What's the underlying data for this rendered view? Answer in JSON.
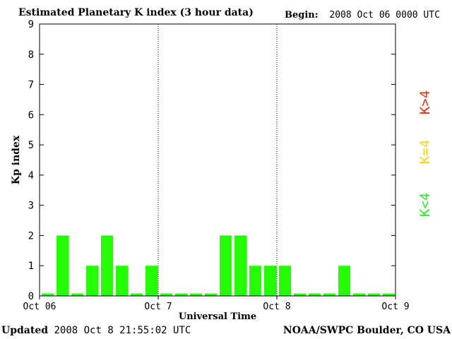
{
  "header": {
    "title": "Estimated Planetary K index (3 hour data)",
    "begin_label": "Begin:",
    "begin_value": "2008 Oct 06 0000 UTC"
  },
  "footer": {
    "updated_label": "Updated",
    "updated_value": "2008 Oct  8 21:55:02 UTC",
    "org": "NOAA/SWPC Boulder, CO USA"
  },
  "legend": [
    {
      "label": "K>4",
      "color": "#ff2a00"
    },
    {
      "label": "K=4",
      "color": "#ffd400"
    },
    {
      "label": "K<4",
      "color": "#22ee22"
    }
  ],
  "chart_data": {
    "type": "bar",
    "xlabel": "Universal Time",
    "ylabel": "Kp index",
    "ylim": [
      0,
      9
    ],
    "yticks": [
      "0",
      "1",
      "2",
      "3",
      "4",
      "5",
      "6",
      "7",
      "8",
      "9"
    ],
    "xticks": [
      "Oct 06",
      "Oct 7",
      "Oct 8",
      "Oct 9"
    ],
    "bar_color": "#22ff00",
    "values": [
      0,
      2,
      0,
      1,
      2,
      1,
      0,
      1,
      0,
      0,
      0,
      0,
      2,
      2,
      1,
      1,
      1,
      0,
      0,
      0,
      1,
      0,
      0,
      0
    ],
    "day_separators": [
      1,
      2
    ],
    "grid": false
  }
}
